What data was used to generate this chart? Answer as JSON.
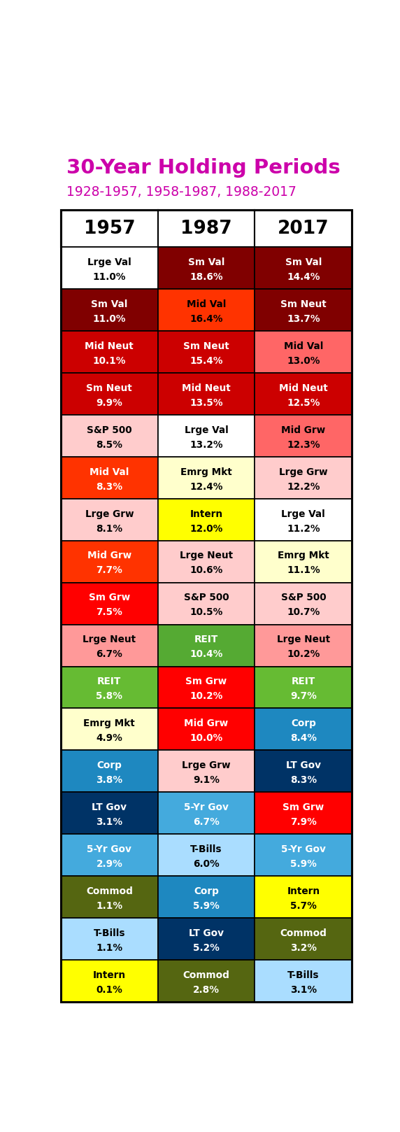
{
  "title": "30-Year Holding Periods",
  "subtitle": "1928-1957, 1958-1987, 1988-2017",
  "columns": [
    "1957",
    "1987",
    "2017"
  ],
  "rows": [
    [
      {
        "label": "Lrge Val",
        "value": "11.0%",
        "bg": "#ffffff",
        "fg": "#000000"
      },
      {
        "label": "Sm Val",
        "value": "18.6%",
        "bg": "#800000",
        "fg": "#ffffff"
      },
      {
        "label": "Sm Val",
        "value": "14.4%",
        "bg": "#800000",
        "fg": "#ffffff"
      }
    ],
    [
      {
        "label": "Sm Val",
        "value": "11.0%",
        "bg": "#800000",
        "fg": "#ffffff"
      },
      {
        "label": "Mid Val",
        "value": "16.4%",
        "bg": "#ff3300",
        "fg": "#000000"
      },
      {
        "label": "Sm Neut",
        "value": "13.7%",
        "bg": "#800000",
        "fg": "#ffffff"
      }
    ],
    [
      {
        "label": "Mid Neut",
        "value": "10.1%",
        "bg": "#cc0000",
        "fg": "#ffffff"
      },
      {
        "label": "Sm Neut",
        "value": "15.4%",
        "bg": "#cc0000",
        "fg": "#ffffff"
      },
      {
        "label": "Mid Val",
        "value": "13.0%",
        "bg": "#ff6666",
        "fg": "#000000"
      }
    ],
    [
      {
        "label": "Sm Neut",
        "value": "9.9%",
        "bg": "#cc0000",
        "fg": "#ffffff"
      },
      {
        "label": "Mid Neut",
        "value": "13.5%",
        "bg": "#cc0000",
        "fg": "#ffffff"
      },
      {
        "label": "Mid Neut",
        "value": "12.5%",
        "bg": "#cc0000",
        "fg": "#ffffff"
      }
    ],
    [
      {
        "label": "S&P 500",
        "value": "8.5%",
        "bg": "#ffcccc",
        "fg": "#000000"
      },
      {
        "label": "Lrge Val",
        "value": "13.2%",
        "bg": "#ffffff",
        "fg": "#000000"
      },
      {
        "label": "Mid Grw",
        "value": "12.3%",
        "bg": "#ff6666",
        "fg": "#000000"
      }
    ],
    [
      {
        "label": "Mid Val",
        "value": "8.3%",
        "bg": "#ff3300",
        "fg": "#ffffff"
      },
      {
        "label": "Emrg Mkt",
        "value": "12.4%",
        "bg": "#ffffcc",
        "fg": "#000000"
      },
      {
        "label": "Lrge Grw",
        "value": "12.2%",
        "bg": "#ffcccc",
        "fg": "#000000"
      }
    ],
    [
      {
        "label": "Lrge Grw",
        "value": "8.1%",
        "bg": "#ffcccc",
        "fg": "#000000"
      },
      {
        "label": "Intern",
        "value": "12.0%",
        "bg": "#ffff00",
        "fg": "#000000"
      },
      {
        "label": "Lrge Val",
        "value": "11.2%",
        "bg": "#ffffff",
        "fg": "#000000"
      }
    ],
    [
      {
        "label": "Mid Grw",
        "value": "7.7%",
        "bg": "#ff3300",
        "fg": "#ffffff"
      },
      {
        "label": "Lrge Neut",
        "value": "10.6%",
        "bg": "#ffcccc",
        "fg": "#000000"
      },
      {
        "label": "Emrg Mkt",
        "value": "11.1%",
        "bg": "#ffffcc",
        "fg": "#000000"
      }
    ],
    [
      {
        "label": "Sm Grw",
        "value": "7.5%",
        "bg": "#ff0000",
        "fg": "#ffffff"
      },
      {
        "label": "S&P 500",
        "value": "10.5%",
        "bg": "#ffcccc",
        "fg": "#000000"
      },
      {
        "label": "S&P 500",
        "value": "10.7%",
        "bg": "#ffcccc",
        "fg": "#000000"
      }
    ],
    [
      {
        "label": "Lrge Neut",
        "value": "6.7%",
        "bg": "#ff9999",
        "fg": "#000000"
      },
      {
        "label": "REIT",
        "value": "10.4%",
        "bg": "#55aa33",
        "fg": "#ffffff"
      },
      {
        "label": "Lrge Neut",
        "value": "10.2%",
        "bg": "#ff9999",
        "fg": "#000000"
      }
    ],
    [
      {
        "label": "REIT",
        "value": "5.8%",
        "bg": "#66bb33",
        "fg": "#ffffff"
      },
      {
        "label": "Sm Grw",
        "value": "10.2%",
        "bg": "#ff0000",
        "fg": "#ffffff"
      },
      {
        "label": "REIT",
        "value": "9.7%",
        "bg": "#66bb33",
        "fg": "#ffffff"
      }
    ],
    [
      {
        "label": "Emrg Mkt",
        "value": "4.9%",
        "bg": "#ffffcc",
        "fg": "#000000"
      },
      {
        "label": "Mid Grw",
        "value": "10.0%",
        "bg": "#ff0000",
        "fg": "#ffffff"
      },
      {
        "label": "Corp",
        "value": "8.4%",
        "bg": "#1e88c0",
        "fg": "#ffffff"
      }
    ],
    [
      {
        "label": "Corp",
        "value": "3.8%",
        "bg": "#1e88c0",
        "fg": "#ffffff"
      },
      {
        "label": "Lrge Grw",
        "value": "9.1%",
        "bg": "#ffcccc",
        "fg": "#000000"
      },
      {
        "label": "LT Gov",
        "value": "8.3%",
        "bg": "#003366",
        "fg": "#ffffff"
      }
    ],
    [
      {
        "label": "LT Gov",
        "value": "3.1%",
        "bg": "#003366",
        "fg": "#ffffff"
      },
      {
        "label": "5-Yr Gov",
        "value": "6.7%",
        "bg": "#44aadd",
        "fg": "#ffffff"
      },
      {
        "label": "Sm Grw",
        "value": "7.9%",
        "bg": "#ff0000",
        "fg": "#ffffff"
      }
    ],
    [
      {
        "label": "5-Yr Gov",
        "value": "2.9%",
        "bg": "#44aadd",
        "fg": "#ffffff"
      },
      {
        "label": "T-Bills",
        "value": "6.0%",
        "bg": "#aaddff",
        "fg": "#000000"
      },
      {
        "label": "5-Yr Gov",
        "value": "5.9%",
        "bg": "#44aadd",
        "fg": "#ffffff"
      }
    ],
    [
      {
        "label": "Commod",
        "value": "1.1%",
        "bg": "#556611",
        "fg": "#ffffff"
      },
      {
        "label": "Corp",
        "value": "5.9%",
        "bg": "#1e88c0",
        "fg": "#ffffff"
      },
      {
        "label": "Intern",
        "value": "5.7%",
        "bg": "#ffff00",
        "fg": "#000000"
      }
    ],
    [
      {
        "label": "T-Bills",
        "value": "1.1%",
        "bg": "#aaddff",
        "fg": "#000000"
      },
      {
        "label": "LT Gov",
        "value": "5.2%",
        "bg": "#003366",
        "fg": "#ffffff"
      },
      {
        "label": "Commod",
        "value": "3.2%",
        "bg": "#556611",
        "fg": "#ffffff"
      }
    ],
    [
      {
        "label": "Intern",
        "value": "0.1%",
        "bg": "#ffff00",
        "fg": "#000000"
      },
      {
        "label": "Commod",
        "value": "2.8%",
        "bg": "#556611",
        "fg": "#ffffff"
      },
      {
        "label": "T-Bills",
        "value": "3.1%",
        "bg": "#aaddff",
        "fg": "#000000"
      }
    ]
  ]
}
